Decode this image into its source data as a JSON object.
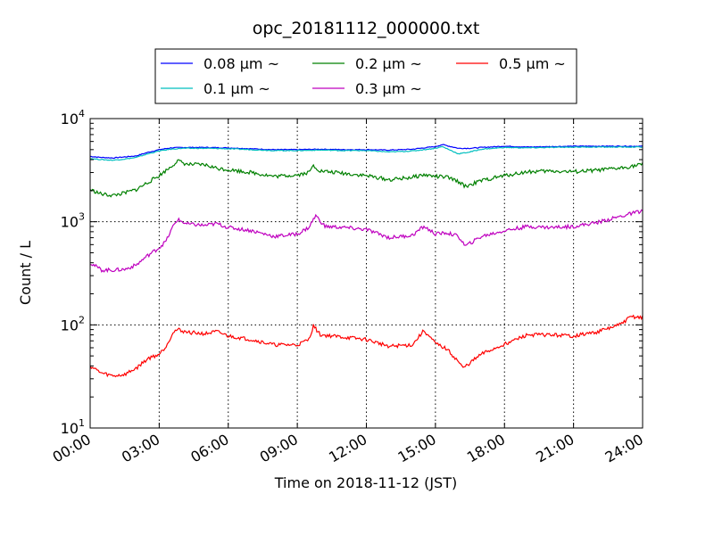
{
  "chart_data": {
    "type": "line",
    "title": "opc_20181112_000000.txt",
    "xlabel": "Time on 2018-11-12 (JST)",
    "ylabel": "Count / L",
    "y_scale": "log",
    "ylim": [
      10,
      10000
    ],
    "xlim_hours": [
      0,
      24
    ],
    "x_tick_hours": [
      0,
      3,
      6,
      9,
      12,
      15,
      18,
      21,
      24
    ],
    "x_tick_labels": [
      "00:00",
      "03:00",
      "06:00",
      "09:00",
      "12:00",
      "15:00",
      "18:00",
      "21:00",
      "24:00"
    ],
    "y_ticks": [
      {
        "value": 10,
        "base": "10",
        "exp": "1"
      },
      {
        "value": 100,
        "base": "10",
        "exp": "2"
      },
      {
        "value": 1000,
        "base": "10",
        "exp": "3"
      },
      {
        "value": 10000,
        "base": "10",
        "exp": "4"
      }
    ],
    "grid": true,
    "legend_position": "top-center",
    "series": [
      {
        "name": "0.08 µm ~",
        "label_num": "0.08",
        "color": "#0000ff",
        "points": [
          [
            0,
            4300
          ],
          [
            0.5,
            4200
          ],
          [
            1,
            4150
          ],
          [
            1.5,
            4250
          ],
          [
            2,
            4350
          ],
          [
            2.5,
            4700
          ],
          [
            3,
            5000
          ],
          [
            3.5,
            5200
          ],
          [
            4,
            5250
          ],
          [
            5,
            5250
          ],
          [
            6,
            5200
          ],
          [
            7,
            5100
          ],
          [
            8,
            5000
          ],
          [
            9,
            5000
          ],
          [
            10,
            5050
          ],
          [
            11,
            5000
          ],
          [
            12,
            5000
          ],
          [
            13,
            4950
          ],
          [
            14,
            5050
          ],
          [
            14.5,
            5200
          ],
          [
            15,
            5350
          ],
          [
            15.3,
            5600
          ],
          [
            15.6,
            5400
          ],
          [
            16,
            5150
          ],
          [
            16.5,
            5150
          ],
          [
            17,
            5250
          ],
          [
            18,
            5400
          ],
          [
            19,
            5300
          ],
          [
            20,
            5350
          ],
          [
            21,
            5400
          ],
          [
            22,
            5400
          ],
          [
            23,
            5400
          ],
          [
            24,
            5400
          ]
        ]
      },
      {
        "name": "0.1 µm ~",
        "label_num": "0.1",
        "color": "#00bfbf",
        "points": [
          [
            0,
            4100
          ],
          [
            0.5,
            4000
          ],
          [
            1,
            3950
          ],
          [
            1.5,
            4050
          ],
          [
            2,
            4200
          ],
          [
            2.5,
            4550
          ],
          [
            3,
            4850
          ],
          [
            3.5,
            5050
          ],
          [
            4,
            5150
          ],
          [
            5,
            5150
          ],
          [
            6,
            5100
          ],
          [
            7,
            5000
          ],
          [
            8,
            4900
          ],
          [
            9,
            4900
          ],
          [
            10,
            4950
          ],
          [
            11,
            4900
          ],
          [
            12,
            4900
          ],
          [
            13,
            4750
          ],
          [
            14,
            4850
          ],
          [
            14.5,
            5000
          ],
          [
            15,
            5150
          ],
          [
            15.3,
            5350
          ],
          [
            15.6,
            5000
          ],
          [
            16,
            4550
          ],
          [
            16.5,
            4750
          ],
          [
            17,
            5050
          ],
          [
            18,
            5250
          ],
          [
            19,
            5200
          ],
          [
            20,
            5250
          ],
          [
            21,
            5300
          ],
          [
            22,
            5300
          ],
          [
            23,
            5300
          ],
          [
            24,
            5300
          ]
        ]
      },
      {
        "name": "0.2 µm ~",
        "label_num": "0.2",
        "color": "#008000",
        "points": [
          [
            0,
            2050
          ],
          [
            0.5,
            1850
          ],
          [
            1,
            1800
          ],
          [
            1.5,
            1900
          ],
          [
            2,
            2050
          ],
          [
            2.5,
            2400
          ],
          [
            3,
            2800
          ],
          [
            3.5,
            3400
          ],
          [
            3.8,
            3900
          ],
          [
            4.2,
            3600
          ],
          [
            5,
            3550
          ],
          [
            5.5,
            3300
          ],
          [
            6,
            3200
          ],
          [
            7,
            3000
          ],
          [
            8,
            2750
          ],
          [
            9,
            2850
          ],
          [
            9.5,
            3000
          ],
          [
            9.7,
            3500
          ],
          [
            10,
            3100
          ],
          [
            11,
            2950
          ],
          [
            12,
            2800
          ],
          [
            13,
            2550
          ],
          [
            14,
            2700
          ],
          [
            14.5,
            2850
          ],
          [
            15,
            2750
          ],
          [
            15.5,
            2700
          ],
          [
            16,
            2450
          ],
          [
            16.3,
            2200
          ],
          [
            17,
            2500
          ],
          [
            18,
            2800
          ],
          [
            19,
            3050
          ],
          [
            20,
            3100
          ],
          [
            21,
            3050
          ],
          [
            22,
            3150
          ],
          [
            23,
            3300
          ],
          [
            24,
            3600
          ]
        ]
      },
      {
        "name": "0.3 µm ~",
        "label_num": "0.3",
        "color": "#bf00bf",
        "points": [
          [
            0,
            400
          ],
          [
            0.5,
            340
          ],
          [
            1,
            340
          ],
          [
            1.5,
            345
          ],
          [
            2,
            380
          ],
          [
            2.5,
            470
          ],
          [
            3,
            560
          ],
          [
            3.3,
            650
          ],
          [
            3.6,
            900
          ],
          [
            3.8,
            1050
          ],
          [
            4.2,
            950
          ],
          [
            5,
            920
          ],
          [
            5.5,
            960
          ],
          [
            6,
            880
          ],
          [
            7,
            820
          ],
          [
            8,
            720
          ],
          [
            9,
            760
          ],
          [
            9.5,
            880
          ],
          [
            9.8,
            1150
          ],
          [
            10.2,
            900
          ],
          [
            11,
            880
          ],
          [
            12,
            840
          ],
          [
            13,
            700
          ],
          [
            14,
            740
          ],
          [
            14.5,
            900
          ],
          [
            15,
            760
          ],
          [
            15.5,
            780
          ],
          [
            16,
            720
          ],
          [
            16.3,
            580
          ],
          [
            17,
            720
          ],
          [
            18,
            820
          ],
          [
            19,
            900
          ],
          [
            20,
            880
          ],
          [
            21,
            900
          ],
          [
            22,
            980
          ],
          [
            23,
            1120
          ],
          [
            24,
            1280
          ]
        ]
      },
      {
        "name": "0.5 µm ~",
        "label_num": "0.5",
        "color": "#ff0000",
        "points": [
          [
            0,
            40
          ],
          [
            0.5,
            34
          ],
          [
            1,
            32
          ],
          [
            1.5,
            33
          ],
          [
            2,
            38
          ],
          [
            2.5,
            47
          ],
          [
            3,
            52
          ],
          [
            3.3,
            62
          ],
          [
            3.6,
            85
          ],
          [
            3.8,
            90
          ],
          [
            4.2,
            85
          ],
          [
            5,
            82
          ],
          [
            5.5,
            86
          ],
          [
            6,
            78
          ],
          [
            7,
            72
          ],
          [
            8,
            64
          ],
          [
            9,
            64
          ],
          [
            9.5,
            72
          ],
          [
            9.7,
            98
          ],
          [
            10,
            80
          ],
          [
            11,
            76
          ],
          [
            12,
            72
          ],
          [
            13,
            62
          ],
          [
            14,
            64
          ],
          [
            14.5,
            88
          ],
          [
            15,
            66
          ],
          [
            15.5,
            58
          ],
          [
            16,
            44
          ],
          [
            16.2,
            38
          ],
          [
            17,
            52
          ],
          [
            18,
            65
          ],
          [
            19,
            80
          ],
          [
            20,
            80
          ],
          [
            21,
            78
          ],
          [
            22,
            85
          ],
          [
            23,
            100
          ],
          [
            23.5,
            120
          ],
          [
            24,
            118
          ]
        ]
      }
    ]
  }
}
